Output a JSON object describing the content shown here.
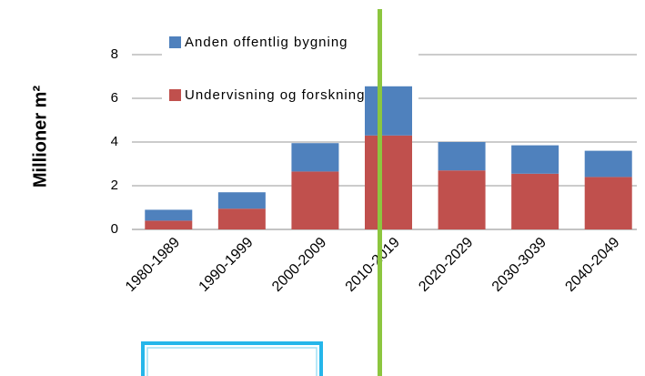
{
  "chart_data": {
    "type": "stacked_bar",
    "y_axis_label": "Millioner m²",
    "categories": [
      "1980-1989",
      "1990-1999",
      "2000-2009",
      "2010-2019",
      "2020-2029",
      "2030-3039",
      "2040-2049"
    ],
    "series": [
      {
        "name": "Undervisning og forskning",
        "color": "#c0504d",
        "values": [
          0.4,
          0.95,
          2.65,
          4.3,
          2.7,
          2.55,
          2.4
        ]
      },
      {
        "name": "Anden offentlig bygning",
        "color": "#4f81bd",
        "values": [
          0.5,
          0.75,
          1.3,
          2.25,
          1.3,
          1.3,
          1.2
        ]
      }
    ],
    "ylim": [
      0,
      8
    ],
    "yticks": [
      0,
      2,
      4,
      6,
      8
    ],
    "grid": true,
    "legend": "top-left"
  }
}
